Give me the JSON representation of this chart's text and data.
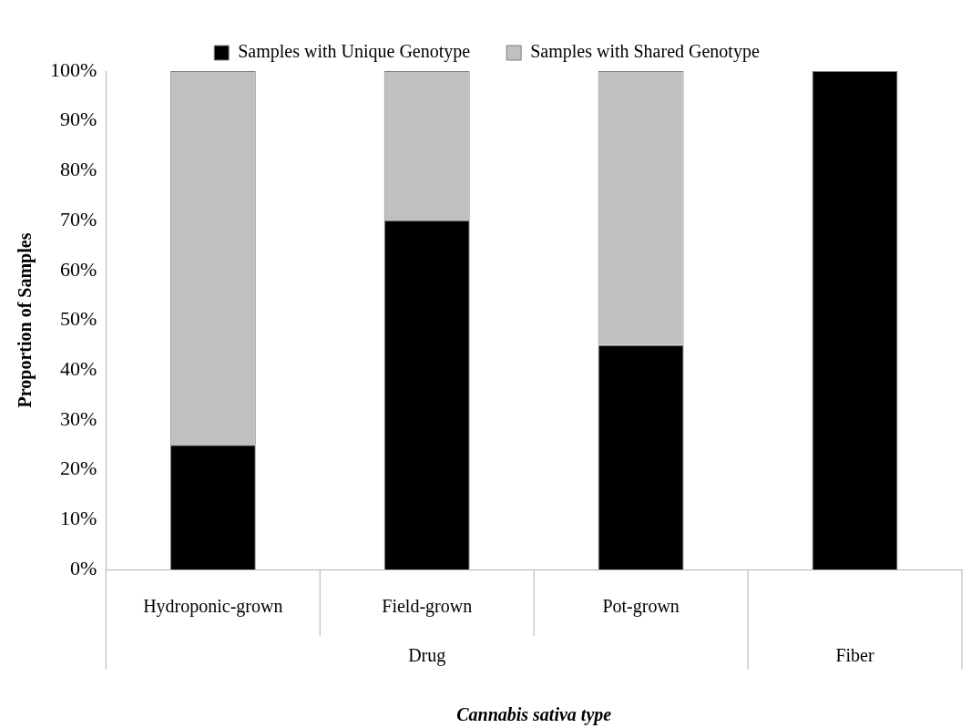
{
  "chart_data": {
    "type": "bar",
    "stacked": true,
    "xlabel": "Cannabis sativa type",
    "ylabel": "Proportion of Samples",
    "categories": [
      "Hydroponic-grown",
      "Field-grown",
      "Pot-grown",
      null
    ],
    "annotations": [
      "Drug",
      "Fiber"
    ],
    "series": [
      {
        "name": "Samples with Unique Genotype",
        "color": "#000000",
        "values": [
          25,
          70,
          45,
          100
        ]
      },
      {
        "name": "Samples with Shared Genotype",
        "color": "#c0c0c0",
        "values": [
          75,
          30,
          55,
          0
        ]
      }
    ],
    "ylim": [
      0,
      100
    ],
    "yticks": [
      {
        "value": 0,
        "label": "0%"
      },
      {
        "value": 10,
        "label": "10%"
      },
      {
        "value": 20,
        "label": "20%"
      },
      {
        "value": 30,
        "label": "30%"
      },
      {
        "value": 40,
        "label": "40%"
      },
      {
        "value": 50,
        "label": "50%"
      },
      {
        "value": 60,
        "label": "60%"
      },
      {
        "value": 70,
        "label": "70%"
      },
      {
        "value": 80,
        "label": "80%"
      },
      {
        "value": 90,
        "label": "90%"
      },
      {
        "value": 100,
        "label": "100%"
      }
    ],
    "grid": false,
    "legend": "top"
  }
}
